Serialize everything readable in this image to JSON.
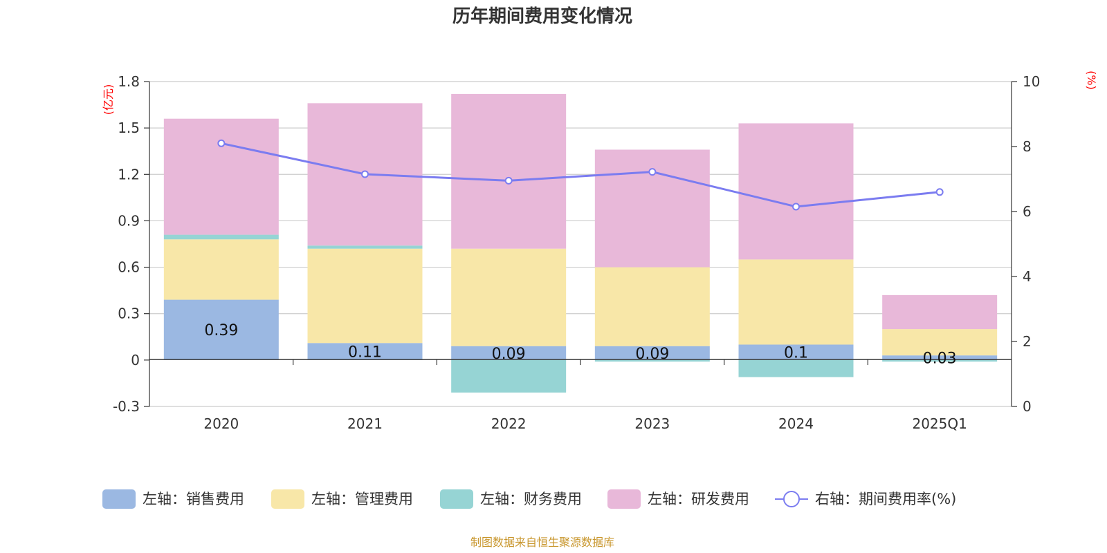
{
  "chart_data": {
    "type": "bar",
    "title": "历年期间费用变化情况",
    "categories": [
      "2020",
      "2021",
      "2022",
      "2023",
      "2024",
      "2025Q1"
    ],
    "left_axis": {
      "unit": "(亿元)",
      "ylim": [
        -0.3,
        1.8
      ],
      "ticks": [
        "-0.3",
        "0",
        "0.3",
        "0.6",
        "0.9",
        "1.2",
        "1.5",
        "1.8"
      ],
      "tick_values": [
        -0.3,
        0,
        0.3,
        0.6,
        0.9,
        1.2,
        1.5,
        1.8
      ]
    },
    "right_axis": {
      "unit": "(%)",
      "ylim": [
        0,
        10
      ],
      "ticks": [
        "0",
        "2",
        "4",
        "6",
        "8",
        "10"
      ],
      "tick_values": [
        0,
        2,
        4,
        6,
        8,
        10
      ]
    },
    "series": [
      {
        "name": "左轴：销售费用",
        "type": "bar",
        "axis": "left",
        "color": "#9bb8e2",
        "values": [
          0.39,
          0.11,
          0.09,
          0.09,
          0.1,
          0.03
        ],
        "labels": [
          "0.39",
          "0.11",
          "0.09",
          "0.09",
          "0.1",
          "0.03"
        ]
      },
      {
        "name": "左轴：管理费用",
        "type": "bar",
        "axis": "left",
        "color": "#f8e7a8",
        "values": [
          0.39,
          0.61,
          0.63,
          0.51,
          0.55,
          0.17
        ]
      },
      {
        "name": "左轴：财务费用",
        "type": "bar",
        "axis": "left",
        "color": "#96d4d4",
        "values": [
          0.03,
          0.02,
          -0.21,
          -0.01,
          -0.11,
          -0.01
        ]
      },
      {
        "name": "左轴：研发费用",
        "type": "bar",
        "axis": "left",
        "color": "#e8b8d9",
        "values": [
          0.75,
          0.92,
          1.0,
          0.76,
          0.88,
          0.22
        ]
      },
      {
        "name": "右轴：期间费用率(%)",
        "type": "line",
        "axis": "right",
        "color": "#7b7cf0",
        "values": [
          8.1,
          7.15,
          6.95,
          7.22,
          6.15,
          6.6
        ]
      }
    ],
    "grid": true,
    "legend_position": "bottom",
    "source": "制图数据来自恒生聚源数据库"
  }
}
